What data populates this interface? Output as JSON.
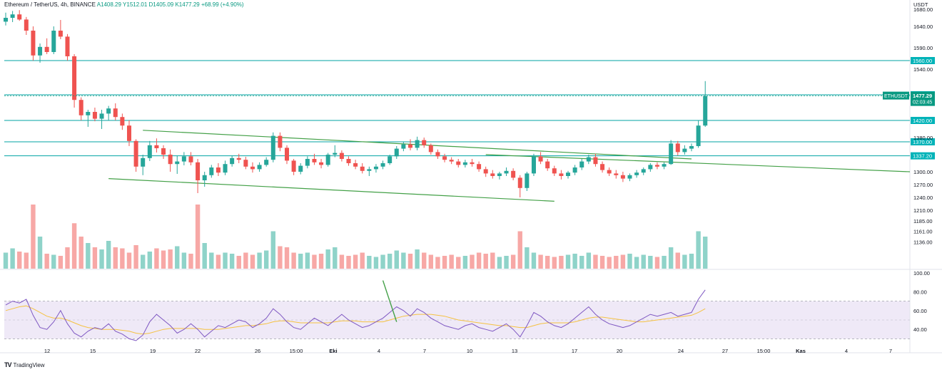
{
  "legend": {
    "symbol": "Ethereum / TetherUS, 4h, BINANCE",
    "open": "A1408.29",
    "high": "Y1512.01",
    "low": "D1405.09",
    "close": "K1477.29",
    "change": "+68.99 (+4.90%)"
  },
  "brand": {
    "logo": "TV",
    "name": "TradingView"
  },
  "colors": {
    "up": "#26a69a",
    "down": "#ef5350",
    "volUp": "#8fd3c9",
    "volDown": "#f7a8a6",
    "hline": "#00a3a3",
    "channel": "#43a047",
    "rsi": "#7e57c2",
    "rsiMa": "#f5c242",
    "badge": "#00b3b8",
    "price": "#089981"
  },
  "chart_data": {
    "type": "candlestick",
    "quote_unit": "USDT",
    "y_ticks": [
      1680,
      1640,
      1590,
      1540,
      1380,
      1300,
      1270,
      1240,
      1210,
      1185,
      1161,
      1136
    ],
    "y_tick_labels": [
      "1680.00",
      "1640.00",
      "1590.00",
      "1540.00",
      "1380.00",
      "1300.00",
      "1270.00",
      "1240.00",
      "1210.00",
      "1185.00",
      "1161.00",
      "1136.00"
    ],
    "x_tick_labels": [
      "12",
      "15",
      "19",
      "22",
      "26",
      "15:00",
      "Eki",
      "4",
      "7",
      "10",
      "13",
      "17",
      "20",
      "24",
      "27",
      "15:00",
      "Kas",
      "4",
      "7"
    ],
    "horizontal_levels": [
      1560,
      1480,
      1420,
      1370,
      1337.2
    ],
    "level_labels": [
      "1560.00",
      "1480.00",
      "1420.00",
      "1370.00",
      "1337.20"
    ],
    "last_price": {
      "symbol": "ETHUSDT",
      "price": "1477.29",
      "countdown": "02:03:45"
    },
    "channel_upper": [
      [
        20,
        1397
      ],
      [
        100,
        1330
      ]
    ],
    "channel_lower": [
      [
        15,
        1284
      ],
      [
        80,
        1231
      ]
    ],
    "outer_line": [
      [
        70,
        1340
      ],
      [
        110,
        1302
      ]
    ],
    "candles_approx": [
      [
        1651,
        1672,
        1642,
        1660
      ],
      [
        1660,
        1676,
        1650,
        1668
      ],
      [
        1668,
        1678,
        1653,
        1656
      ],
      [
        1656,
        1662,
        1620,
        1630
      ],
      [
        1630,
        1640,
        1560,
        1572
      ],
      [
        1572,
        1600,
        1555,
        1592
      ],
      [
        1592,
        1612,
        1575,
        1580
      ],
      [
        1580,
        1640,
        1575,
        1630
      ],
      [
        1630,
        1655,
        1610,
        1616
      ],
      [
        1616,
        1622,
        1560,
        1570
      ],
      [
        1570,
        1575,
        1450,
        1468
      ],
      [
        1468,
        1474,
        1420,
        1432
      ],
      [
        1432,
        1445,
        1405,
        1440
      ],
      [
        1440,
        1450,
        1418,
        1424
      ],
      [
        1424,
        1445,
        1400,
        1436
      ],
      [
        1436,
        1454,
        1420,
        1448
      ],
      [
        1448,
        1460,
        1420,
        1428
      ],
      [
        1428,
        1436,
        1398,
        1408
      ],
      [
        1408,
        1420,
        1360,
        1372
      ],
      [
        1372,
        1376,
        1300,
        1312
      ],
      [
        1312,
        1340,
        1292,
        1332
      ],
      [
        1332,
        1372,
        1325,
        1362
      ],
      [
        1362,
        1378,
        1345,
        1355
      ],
      [
        1355,
        1362,
        1330,
        1340
      ],
      [
        1340,
        1352,
        1300,
        1318
      ],
      [
        1318,
        1338,
        1295,
        1324
      ],
      [
        1324,
        1346,
        1315,
        1336
      ],
      [
        1336,
        1346,
        1315,
        1322
      ],
      [
        1322,
        1330,
        1250,
        1280
      ],
      [
        1280,
        1300,
        1265,
        1292
      ],
      [
        1292,
        1316,
        1286,
        1310
      ],
      [
        1310,
        1320,
        1290,
        1298
      ],
      [
        1298,
        1326,
        1292,
        1318
      ],
      [
        1318,
        1338,
        1312,
        1332
      ],
      [
        1332,
        1342,
        1320,
        1328
      ],
      [
        1328,
        1335,
        1306,
        1312
      ],
      [
        1312,
        1322,
        1298,
        1306
      ],
      [
        1306,
        1322,
        1300,
        1316
      ],
      [
        1316,
        1334,
        1312,
        1328
      ],
      [
        1328,
        1392,
        1322,
        1384
      ],
      [
        1384,
        1392,
        1348,
        1356
      ],
      [
        1356,
        1362,
        1318,
        1326
      ],
      [
        1326,
        1330,
        1292,
        1300
      ],
      [
        1300,
        1320,
        1294,
        1314
      ],
      [
        1314,
        1336,
        1308,
        1330
      ],
      [
        1330,
        1342,
        1316,
        1322
      ],
      [
        1322,
        1330,
        1308,
        1316
      ],
      [
        1316,
        1344,
        1312,
        1340
      ],
      [
        1340,
        1362,
        1334,
        1344
      ],
      [
        1344,
        1350,
        1324,
        1330
      ],
      [
        1330,
        1336,
        1314,
        1320
      ],
      [
        1320,
        1328,
        1306,
        1312
      ],
      [
        1312,
        1320,
        1296,
        1302
      ],
      [
        1302,
        1312,
        1290,
        1306
      ],
      [
        1306,
        1318,
        1298,
        1312
      ],
      [
        1312,
        1326,
        1306,
        1320
      ],
      [
        1320,
        1340,
        1316,
        1336
      ],
      [
        1336,
        1360,
        1330,
        1354
      ],
      [
        1354,
        1370,
        1348,
        1364
      ],
      [
        1364,
        1376,
        1350,
        1356
      ],
      [
        1356,
        1382,
        1350,
        1374
      ],
      [
        1374,
        1380,
        1356,
        1362
      ],
      [
        1362,
        1366,
        1340,
        1346
      ],
      [
        1346,
        1352,
        1330,
        1336
      ],
      [
        1336,
        1342,
        1322,
        1328
      ],
      [
        1328,
        1334,
        1318,
        1324
      ],
      [
        1324,
        1330,
        1310,
        1316
      ],
      [
        1316,
        1328,
        1310,
        1322
      ],
      [
        1322,
        1330,
        1312,
        1318
      ],
      [
        1318,
        1324,
        1300,
        1306
      ],
      [
        1306,
        1312,
        1288,
        1296
      ],
      [
        1296,
        1304,
        1284,
        1290
      ],
      [
        1290,
        1300,
        1282,
        1296
      ],
      [
        1296,
        1310,
        1290,
        1302
      ],
      [
        1302,
        1308,
        1280,
        1286
      ],
      [
        1286,
        1292,
        1240,
        1262
      ],
      [
        1262,
        1300,
        1255,
        1296
      ],
      [
        1296,
        1342,
        1290,
        1336
      ],
      [
        1336,
        1346,
        1318,
        1324
      ],
      [
        1324,
        1330,
        1302,
        1308
      ],
      [
        1308,
        1314,
        1290,
        1296
      ],
      [
        1296,
        1304,
        1282,
        1290
      ],
      [
        1290,
        1302,
        1284,
        1298
      ],
      [
        1298,
        1316,
        1292,
        1310
      ],
      [
        1310,
        1330,
        1304,
        1324
      ],
      [
        1324,
        1340,
        1318,
        1334
      ],
      [
        1334,
        1342,
        1312,
        1318
      ],
      [
        1318,
        1324,
        1298,
        1304
      ],
      [
        1304,
        1310,
        1290,
        1296
      ],
      [
        1296,
        1304,
        1284,
        1292
      ],
      [
        1292,
        1300,
        1276,
        1284
      ],
      [
        1284,
        1296,
        1278,
        1292
      ],
      [
        1292,
        1304,
        1286,
        1298
      ],
      [
        1298,
        1310,
        1292,
        1306
      ],
      [
        1306,
        1320,
        1300,
        1316
      ],
      [
        1316,
        1322,
        1306,
        1312
      ],
      [
        1312,
        1322,
        1306,
        1318
      ],
      [
        1318,
        1374,
        1316,
        1366
      ],
      [
        1366,
        1372,
        1338,
        1346
      ],
      [
        1346,
        1362,
        1340,
        1354
      ],
      [
        1354,
        1366,
        1348,
        1360
      ],
      [
        1360,
        1420,
        1356,
        1408
      ],
      [
        1408,
        1512,
        1405,
        1477
      ]
    ],
    "volume_approx": [
      30,
      38,
      32,
      30,
      120,
      60,
      28,
      26,
      24,
      40,
      85,
      60,
      48,
      40,
      36,
      52,
      40,
      38,
      30,
      44,
      26,
      32,
      38,
      34,
      36,
      42,
      30,
      28,
      120,
      48,
      30,
      26,
      30,
      28,
      24,
      30,
      26,
      30,
      34,
      70,
      42,
      40,
      30,
      28,
      30,
      26,
      28,
      36,
      40,
      26,
      24,
      26,
      30,
      24,
      22,
      26,
      28,
      34,
      30,
      28,
      36,
      30,
      26,
      22,
      24,
      26,
      22,
      24,
      26,
      30,
      28,
      30,
      22,
      24,
      26,
      70,
      40,
      30,
      26,
      24,
      22,
      24,
      26,
      28,
      24,
      30,
      26,
      24,
      22,
      24,
      26,
      28,
      22,
      26,
      24,
      22,
      24,
      40,
      30,
      26,
      28,
      70,
      60
    ],
    "rsi": {
      "y_tick_labels": [
        "100.00",
        "80.00",
        "60.00",
        "40.00"
      ],
      "upper": 70,
      "lower": 30,
      "values_approx": [
        66,
        70,
        68,
        72,
        55,
        42,
        40,
        48,
        60,
        46,
        36,
        32,
        38,
        42,
        40,
        46,
        38,
        35,
        30,
        28,
        34,
        48,
        56,
        50,
        44,
        36,
        40,
        46,
        40,
        32,
        38,
        44,
        42,
        46,
        50,
        48,
        42,
        46,
        52,
        62,
        56,
        48,
        42,
        40,
        46,
        52,
        48,
        44,
        50,
        56,
        50,
        46,
        42,
        44,
        48,
        52,
        58,
        64,
        60,
        54,
        62,
        58,
        52,
        48,
        44,
        42,
        40,
        44,
        46,
        42,
        40,
        38,
        42,
        46,
        40,
        32,
        44,
        58,
        54,
        48,
        44,
        42,
        46,
        52,
        58,
        64,
        56,
        50,
        46,
        44,
        42,
        44,
        48,
        52,
        56,
        54,
        56,
        58,
        54,
        56,
        58,
        72,
        82
      ],
      "ma_approx": [
        60,
        62,
        64,
        65,
        62,
        58,
        54,
        52,
        52,
        50,
        47,
        44,
        42,
        41,
        40,
        40,
        40,
        39,
        38,
        36,
        35,
        36,
        38,
        40,
        41,
        41,
        41,
        41,
        41,
        40,
        40,
        40,
        41,
        42,
        43,
        44,
        44,
        45,
        46,
        48,
        49,
        49,
        48,
        47,
        47,
        47,
        47,
        47,
        48,
        49,
        49,
        49,
        48,
        48,
        48,
        48,
        50,
        52,
        54,
        55,
        56,
        56,
        56,
        55,
        54,
        52,
        50,
        49,
        48,
        47,
        46,
        45,
        44,
        44,
        43,
        42,
        42,
        44,
        46,
        47,
        47,
        47,
        47,
        48,
        50,
        52,
        53,
        53,
        52,
        51,
        50,
        49,
        48,
        48,
        49,
        50,
        51,
        52,
        53,
        54,
        55,
        58,
        62
      ]
    }
  }
}
